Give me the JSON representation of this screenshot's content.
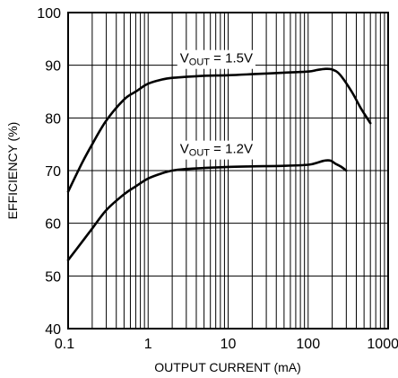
{
  "chart_data": {
    "type": "line",
    "xlabel": "OUTPUT CURRENT (mA)",
    "ylabel": "EFFICIENCY (%)",
    "xscale": "log",
    "xlim": [
      0.1,
      1000
    ],
    "ylim": [
      40,
      100
    ],
    "grid": true,
    "x_ticks": [
      0.1,
      1,
      10,
      100,
      1000
    ],
    "x_tick_labels": [
      "0.1",
      "1",
      "10",
      "100",
      "1000"
    ],
    "y_ticks": [
      40,
      50,
      60,
      70,
      80,
      90,
      100
    ],
    "y_tick_labels": [
      "40",
      "50",
      "60",
      "70",
      "80",
      "90",
      "100"
    ],
    "series": [
      {
        "label_main": "V",
        "label_sub": "OUT",
        "label_rest": " = 1.5V",
        "label_at": {
          "x": 2.5,
          "y": 90.5
        },
        "x": [
          0.1,
          0.15,
          0.2,
          0.3,
          0.5,
          0.7,
          1,
          1.5,
          2,
          3,
          5,
          10,
          20,
          50,
          100,
          130,
          160,
          200,
          250,
          350,
          450,
          600
        ],
        "y": [
          66,
          71.5,
          75,
          79.5,
          83.5,
          85,
          86.5,
          87.3,
          87.6,
          87.8,
          88,
          88.1,
          88.3,
          88.6,
          88.8,
          89.1,
          89.3,
          89.2,
          88.2,
          85,
          82,
          79
        ]
      },
      {
        "label_main": "V",
        "label_sub": "OUT",
        "label_rest": " = 1.2V",
        "label_at": {
          "x": 2.5,
          "y": 73.3
        },
        "x": [
          0.1,
          0.15,
          0.2,
          0.3,
          0.5,
          0.7,
          1,
          1.5,
          2,
          3,
          5,
          10,
          20,
          50,
          100,
          130,
          160,
          190,
          220,
          260,
          300
        ],
        "y": [
          53,
          56.5,
          59,
          62.5,
          65.5,
          67,
          68.5,
          69.5,
          70,
          70.3,
          70.5,
          70.7,
          70.8,
          70.9,
          71.1,
          71.5,
          71.9,
          71.9,
          71.3,
          70.7,
          70
        ]
      }
    ]
  }
}
